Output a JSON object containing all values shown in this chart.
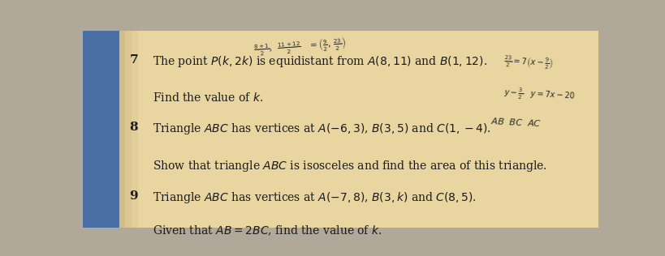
{
  "bg_color": "#b0a898",
  "page_color": "#e8d5a0",
  "blue_edge_color": "#4a6fa5",
  "text_color": "#1a1a1a",
  "handwrite_color": "#2a2a2a",
  "p7_num": "7",
  "p7_line1": "The point $P(k, 2k)$ is equidistant from $A(8, 11)$ and $B(1, 12)$.",
  "p7_line2": "Find the value of $k$.",
  "p8_num": "8",
  "p8_line1": "Triangle $ABC$ has vertices at $A(-6, 3)$, $B(3, 5)$ and $C(1, -4)$.",
  "p8_line2": "Show that triangle $ABC$ is isosceles and find the area of this triangle.",
  "p9_num": "9",
  "p9_line1": "Triangle $ABC$ has vertices at $A(-7, 8)$, $B(3, k)$ and $C(8, 5)$.",
  "p9_line2": "Given that $AB = 2BC$, find the value of $k$.",
  "hw_top": "$\\frac{8+1}{2}$,  $\\frac{11+12}{2}$   $=\\left(\\frac{9}{2},\\,\\frac{23}{2}\\right)$",
  "hw_right1": "$\\frac{23}{2} = 7\\left(x - \\frac{9}{2}\\right)$",
  "hw_right2": "$y - \\frac{3}{2}$   $y = 7x - 20$",
  "hw_right3": "$AB$  $BC$  $AC$"
}
